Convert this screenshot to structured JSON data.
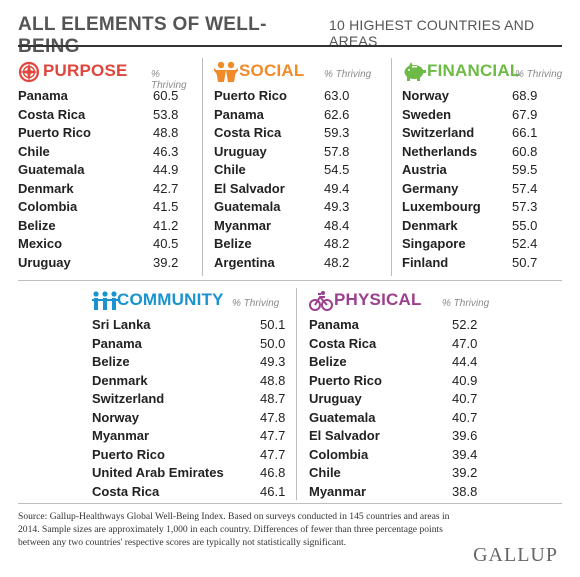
{
  "title": {
    "main": "ALL ELEMENTS OF WELL-BEING",
    "sub": "10 HIGHEST COUNTRIES AND AREAS"
  },
  "thriving_label": "% Thriving",
  "colors": {
    "purpose": "#e0463b",
    "social": "#f08b29",
    "financial": "#6dbb45",
    "community": "#1a93cf",
    "physical": "#9c3f8c"
  },
  "sections": {
    "purpose": {
      "title": "PURPOSE",
      "icon": "compass-icon",
      "rows": [
        {
          "country": "Panama",
          "value": "60.5"
        },
        {
          "country": "Costa Rica",
          "value": "53.8"
        },
        {
          "country": "Puerto Rico",
          "value": "48.8"
        },
        {
          "country": "Chile",
          "value": "46.3"
        },
        {
          "country": "Guatemala",
          "value": "44.9"
        },
        {
          "country": "Denmark",
          "value": "42.7"
        },
        {
          "country": "Colombia",
          "value": "41.5"
        },
        {
          "country": "Belize",
          "value": "41.2"
        },
        {
          "country": "Mexico",
          "value": "40.5"
        },
        {
          "country": "Uruguay",
          "value": "39.2"
        }
      ]
    },
    "social": {
      "title": "SOCIAL",
      "icon": "two-people-icon",
      "rows": [
        {
          "country": "Puerto Rico",
          "value": "63.0"
        },
        {
          "country": "Panama",
          "value": "62.6"
        },
        {
          "country": "Costa Rica",
          "value": "59.3"
        },
        {
          "country": "Uruguay",
          "value": "57.8"
        },
        {
          "country": "Chile",
          "value": "54.5"
        },
        {
          "country": "El Salvador",
          "value": "49.4"
        },
        {
          "country": "Guatemala",
          "value": "49.3"
        },
        {
          "country": "Myanmar",
          "value": "48.4"
        },
        {
          "country": "Belize",
          "value": "48.2"
        },
        {
          "country": "Argentina",
          "value": "48.2"
        }
      ]
    },
    "financial": {
      "title": "FINANCIAL",
      "icon": "piggy-bank-icon",
      "rows": [
        {
          "country": "Norway",
          "value": "68.9"
        },
        {
          "country": "Sweden",
          "value": "67.9"
        },
        {
          "country": "Switzerland",
          "value": "66.1"
        },
        {
          "country": "Netherlands",
          "value": "60.8"
        },
        {
          "country": "Austria",
          "value": "59.5"
        },
        {
          "country": "Germany",
          "value": "57.4"
        },
        {
          "country": "Luxembourg",
          "value": "57.3"
        },
        {
          "country": "Denmark",
          "value": "55.0"
        },
        {
          "country": "Singapore",
          "value": "52.4"
        },
        {
          "country": "Finland",
          "value": "50.7"
        }
      ]
    },
    "community": {
      "title": "COMMUNITY",
      "icon": "community-people-icon",
      "rows": [
        {
          "country": "Sri Lanka",
          "value": "50.1"
        },
        {
          "country": "Panama",
          "value": "50.0"
        },
        {
          "country": "Belize",
          "value": "49.3"
        },
        {
          "country": "Denmark",
          "value": "48.8"
        },
        {
          "country": "Switzerland",
          "value": "48.7"
        },
        {
          "country": "Norway",
          "value": "47.8"
        },
        {
          "country": "Myanmar",
          "value": "47.7"
        },
        {
          "country": "Puerto Rico",
          "value": "47.7"
        },
        {
          "country": "United Arab Emirates",
          "value": "46.8"
        },
        {
          "country": "Costa Rica",
          "value": "46.1"
        }
      ]
    },
    "physical": {
      "title": "PHYSICAL",
      "icon": "bicycle-icon",
      "rows": [
        {
          "country": "Panama",
          "value": "52.2"
        },
        {
          "country": "Costa Rica",
          "value": "47.0"
        },
        {
          "country": "Belize",
          "value": "44.4"
        },
        {
          "country": "Puerto Rico",
          "value": "40.9"
        },
        {
          "country": "Uruguay",
          "value": "40.7"
        },
        {
          "country": "Guatemala",
          "value": "40.7"
        },
        {
          "country": "El Salvador",
          "value": "39.6"
        },
        {
          "country": "Colombia",
          "value": "39.4"
        },
        {
          "country": "Chile",
          "value": "39.2"
        },
        {
          "country": "Myanmar",
          "value": "38.8"
        }
      ]
    }
  },
  "source": "Source: Gallup-Healthways Global Well-Being Index. Based on surveys conducted in 145 countries and areas in 2014. Sample sizes are approximately 1,000 in each country. Differences of fewer than three percentage points between any two countries' respective scores are typically not statistically significant.",
  "logo": "GALLUP"
}
